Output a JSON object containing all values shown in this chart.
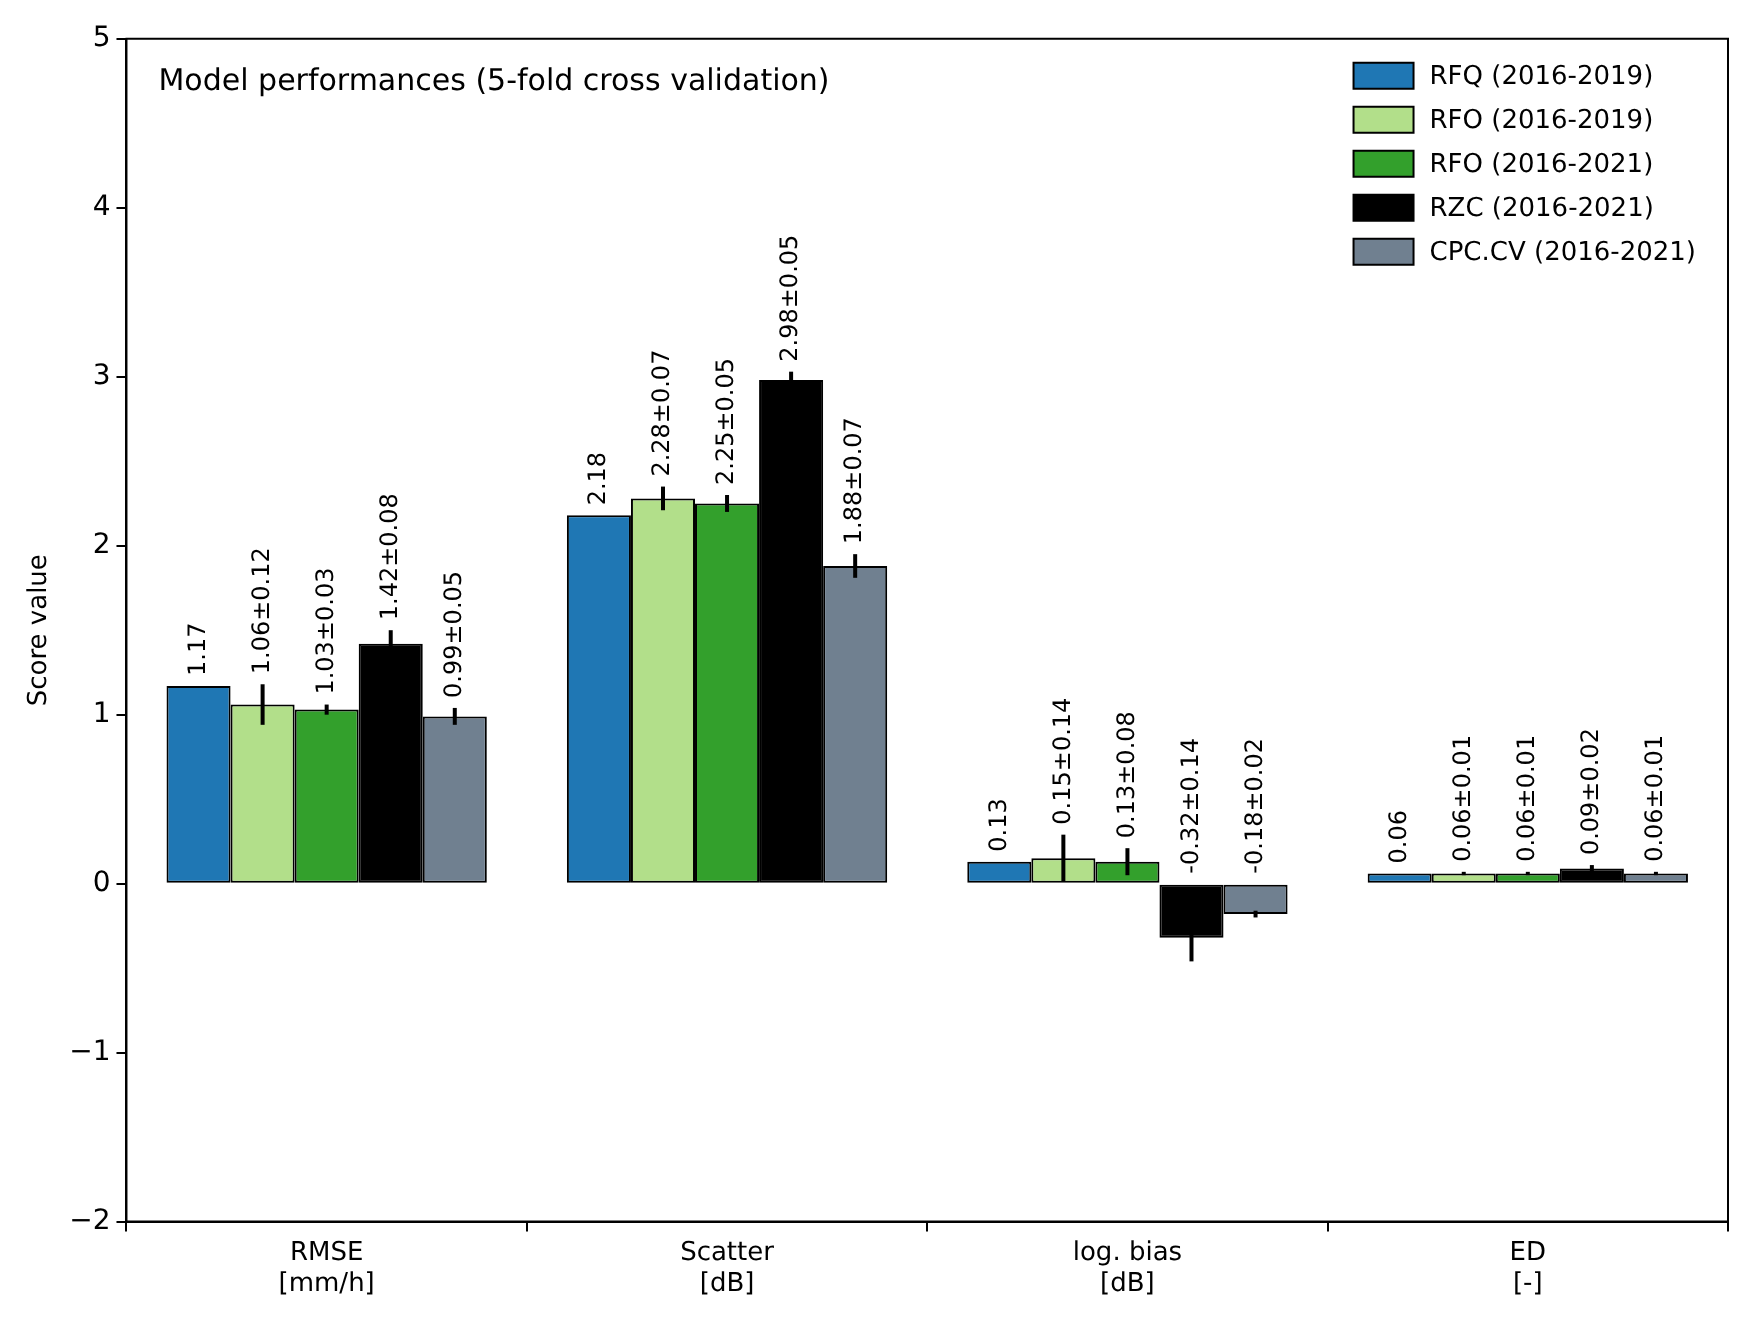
{
  "chart_data": {
    "type": "bar",
    "title": "Model performances (5-fold cross validation)",
    "ylabel": "Score value",
    "categories": [
      "RMSE\n[mm/h]",
      "Scatter\n[dB]",
      "log. bias\n[dB]",
      "ED\n[-]"
    ],
    "series": [
      {
        "name": "RFQ (2016-2019)",
        "color": "#1f77b4",
        "values": [
          1.17,
          2.18,
          0.13,
          0.06
        ],
        "value_labels": [
          "1.17",
          "2.18",
          "0.13",
          "0.06"
        ]
      },
      {
        "name": "RFO (2016-2019)",
        "color": "#b2df8a",
        "values": [
          1.06,
          2.28,
          0.15,
          0.06
        ],
        "errors": [
          0.12,
          0.07,
          0.14,
          0.01
        ],
        "value_labels": [
          "1.06±0.12",
          "2.28±0.07",
          "0.15±0.14",
          "0.06±0.01"
        ]
      },
      {
        "name": "RFO (2016-2021)",
        "color": "#33a02c",
        "values": [
          1.03,
          2.25,
          0.13,
          0.06
        ],
        "errors": [
          0.03,
          0.05,
          0.08,
          0.01
        ],
        "value_labels": [
          "1.03±0.03",
          "2.25±0.05",
          "0.13±0.08",
          "0.06±0.01"
        ]
      },
      {
        "name": "RZC (2016-2021)",
        "color": "#000000",
        "values": [
          1.42,
          2.98,
          -0.32,
          0.09
        ],
        "errors": [
          0.08,
          0.05,
          0.14,
          0.02
        ],
        "value_labels": [
          "1.42±0.08",
          "2.98±0.05",
          "-0.32±0.14",
          "0.09±0.02"
        ]
      },
      {
        "name": "CPC.CV (2016-2021)",
        "color": "#708090",
        "values": [
          0.99,
          1.88,
          -0.18,
          0.06
        ],
        "errors": [
          0.05,
          0.07,
          0.02,
          0.01
        ],
        "value_labels": [
          "0.99±0.05",
          "1.88±0.07",
          "-0.18±0.02",
          "0.06±0.01"
        ]
      }
    ],
    "ylim": [
      -2,
      5
    ],
    "yticks": [
      {
        "value": -2,
        "label": "−2"
      },
      {
        "value": -1,
        "label": "−1"
      },
      0,
      1,
      2,
      3,
      4,
      5
    ],
    "legend": "top right"
  }
}
